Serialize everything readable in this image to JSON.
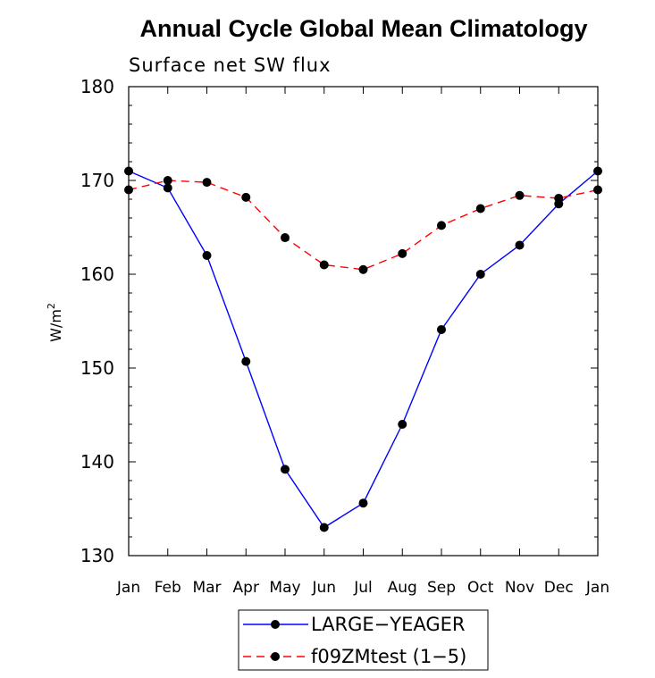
{
  "chart_data": {
    "type": "line",
    "title": "Annual Cycle Global Mean Climatology",
    "subtitle": "Surface net SW flux",
    "xlabel": "",
    "ylabel": "W/m",
    "ylabel_superscript": "2",
    "ylim": [
      130,
      180
    ],
    "yticks": [
      "130",
      "140",
      "150",
      "160",
      "170",
      "180"
    ],
    "categories": [
      "Jan",
      "Feb",
      "Mar",
      "Apr",
      "May",
      "Jun",
      "Jul",
      "Aug",
      "Sep",
      "Oct",
      "Nov",
      "Dec",
      "Jan"
    ],
    "grid": false,
    "legend_position": "bottom",
    "series": [
      {
        "name": "LARGE−YEAGER",
        "color": "#0000ff",
        "dash": "solid",
        "values": [
          171.0,
          169.2,
          162.0,
          150.7,
          139.2,
          133.0,
          135.6,
          144.0,
          154.1,
          160.0,
          163.1,
          167.5,
          171.0
        ]
      },
      {
        "name": "f09ZMtest (1−5)",
        "color": "#ff0000",
        "dash": "dashed",
        "values": [
          169.0,
          170.0,
          169.8,
          168.2,
          163.9,
          161.0,
          160.5,
          162.2,
          165.2,
          167.0,
          168.4,
          168.1,
          169.0
        ]
      }
    ]
  }
}
